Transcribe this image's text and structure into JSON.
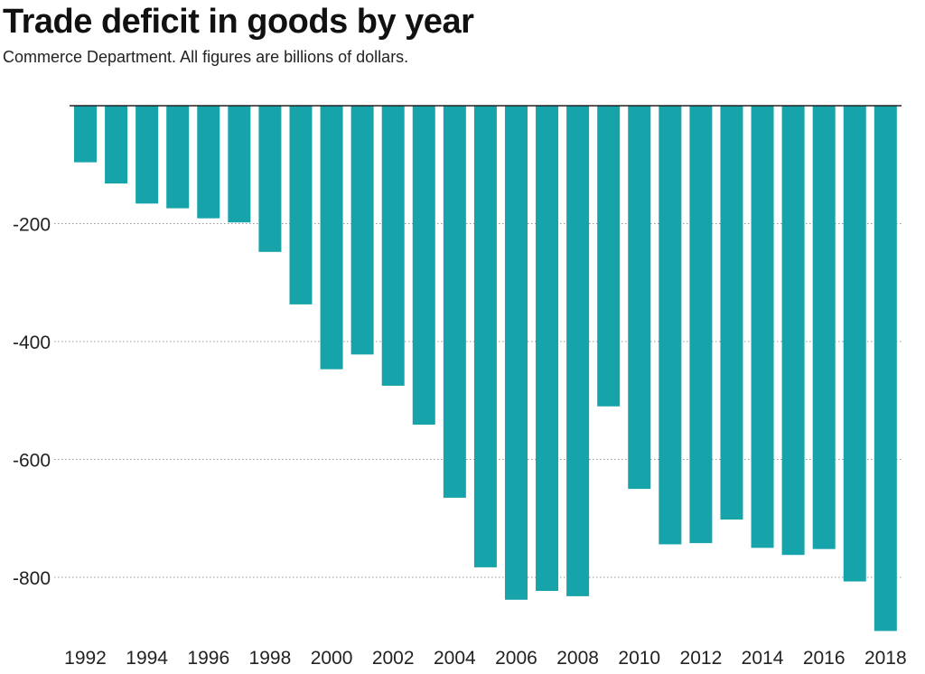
{
  "chart_data": {
    "type": "bar",
    "title": "Trade deficit in goods by year",
    "subtitle": "Commerce Department. All figures are billions of dollars.",
    "xlabel": "",
    "ylabel": "",
    "categories": [
      "1992",
      "1993",
      "1994",
      "1995",
      "1996",
      "1997",
      "1998",
      "1999",
      "2000",
      "2001",
      "2002",
      "2003",
      "2004",
      "2005",
      "2006",
      "2007",
      "2008",
      "2009",
      "2010",
      "2011",
      "2012",
      "2013",
      "2014",
      "2015",
      "2016",
      "2017",
      "2018"
    ],
    "x_tick_labels": [
      "1992",
      "1994",
      "1996",
      "1998",
      "2000",
      "2002",
      "2004",
      "2006",
      "2008",
      "2010",
      "2012",
      "2014",
      "2016",
      "2018"
    ],
    "values": [
      -96,
      -132,
      -166,
      -174,
      -191,
      -198,
      -248,
      -337,
      -447,
      -422,
      -475,
      -541,
      -665,
      -783,
      -838,
      -823,
      -832,
      -510,
      -650,
      -744,
      -742,
      -702,
      -750,
      -762,
      -752,
      -807,
      -891
    ],
    "ylim": [
      -900,
      0
    ],
    "yticks": [
      -200,
      -400,
      -600,
      -800
    ],
    "y_tick_labels": [
      "-200",
      "-400",
      "-600",
      "-800"
    ],
    "grid": true,
    "colors": {
      "bar": "#16a3aa",
      "grid": "#999999",
      "baseline": "#222222"
    }
  }
}
